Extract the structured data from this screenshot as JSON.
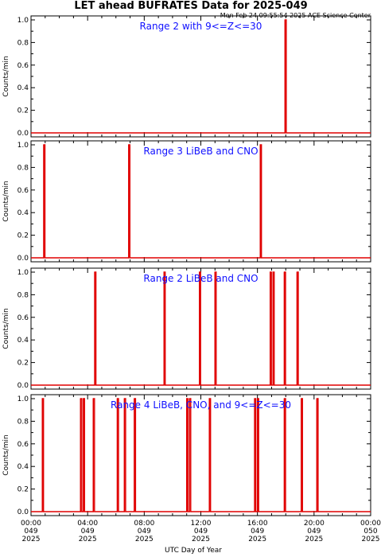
{
  "title": "LET ahead BUFRATES Data for 2025-049",
  "timestamp": "Mon Feb 24 09:55:54 2025 ACE Science Center",
  "xlabel": "UTC Day of Year",
  "colors": {
    "trace": "#e00000",
    "panel_title": "#1010ff",
    "axes": "#000000",
    "background": "#ffffff"
  },
  "x_ticks": [
    {
      "hour": 0,
      "time": "00:00",
      "doy": "049",
      "year": "2025"
    },
    {
      "hour": 4,
      "time": "04:00",
      "doy": "049",
      "year": "2025"
    },
    {
      "hour": 8,
      "time": "08:00",
      "doy": "049",
      "year": "2025"
    },
    {
      "hour": 12,
      "time": "12:00",
      "doy": "049",
      "year": "2025"
    },
    {
      "hour": 16,
      "time": "16:00",
      "doy": "049",
      "year": "2025"
    },
    {
      "hour": 20,
      "time": "20:00",
      "doy": "049",
      "year": "2025"
    },
    {
      "hour": 24,
      "time": "00:00",
      "doy": "050",
      "year": "2025"
    }
  ],
  "chart_data": [
    {
      "type": "line",
      "title": "Range 2 with 9<=Z<=30",
      "ylabel": "Counts/min",
      "xlim": [
        0,
        24
      ],
      "ylim": [
        0,
        1
      ],
      "yticks": [
        "0.0",
        "0.2",
        "0.4",
        "0.6",
        "0.8",
        "1.0"
      ],
      "x_unit": "hours UTC",
      "spikes": [
        17.95
      ]
    },
    {
      "type": "line",
      "title": "Range 3 LiBeB and CNO",
      "ylabel": "Counts/min",
      "xlim": [
        0,
        24
      ],
      "ylim": [
        0,
        1
      ],
      "yticks": [
        "0.0",
        "0.2",
        "0.4",
        "0.6",
        "0.8",
        "1.0"
      ],
      "x_unit": "hours UTC",
      "spikes": [
        0.9,
        6.9,
        16.2
      ]
    },
    {
      "type": "line",
      "title": "Range 2 LiBeB and CNO",
      "ylabel": "Counts/min",
      "xlim": [
        0,
        24
      ],
      "ylim": [
        0,
        1
      ],
      "yticks": [
        "0.0",
        "0.2",
        "0.4",
        "0.6",
        "0.8",
        "1.0"
      ],
      "x_unit": "hours UTC",
      "spikes": [
        4.5,
        9.4,
        11.9,
        13.0,
        16.9,
        17.1,
        17.9,
        18.8
      ]
    },
    {
      "type": "line",
      "title": "Range 4 LiBeB, CNO, and 9<=Z<=30",
      "ylabel": "Counts/min",
      "xlim": [
        0,
        24
      ],
      "ylim": [
        0,
        1
      ],
      "yticks": [
        "0.0",
        "0.2",
        "0.4",
        "0.6",
        "0.8",
        "1.0"
      ],
      "x_unit": "hours UTC",
      "spikes": [
        0.8,
        3.5,
        3.7,
        4.4,
        6.1,
        6.6,
        7.3,
        11.0,
        11.2,
        12.6,
        15.8,
        16.0,
        17.9,
        19.1,
        20.2
      ]
    }
  ]
}
